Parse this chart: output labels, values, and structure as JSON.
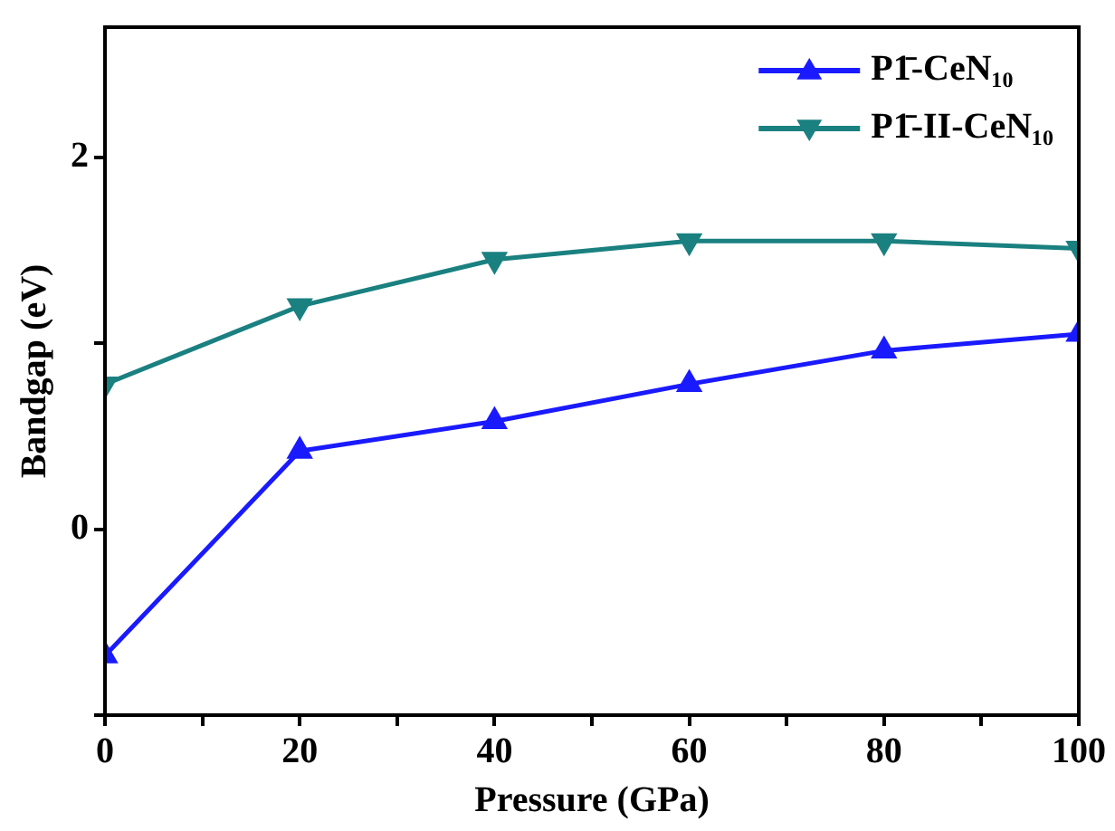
{
  "chart_data": {
    "type": "line",
    "xlabel": "Pressure (GPa)",
    "ylabel": "Bandgap (eV)",
    "x": [
      0,
      20,
      40,
      60,
      80,
      100
    ],
    "series": [
      {
        "name": "P1̄-CeN₁₀",
        "color": "#1a1aff",
        "values": [
          -0.68,
          0.42,
          0.58,
          0.78,
          0.96,
          1.05
        ]
      },
      {
        "name": "P1̄-II-CeN₁₀",
        "color": "#1a8080",
        "values": [
          0.78,
          1.2,
          1.45,
          1.55,
          1.55,
          1.51
        ]
      }
    ],
    "xlim": [
      0,
      100
    ],
    "xticks": [
      0,
      {
        "value": 10,
        "label": null
      },
      20,
      {
        "value": 30,
        "label": null
      },
      40,
      {
        "value": 50,
        "label": null
      },
      60,
      {
        "value": 70,
        "label": null
      },
      80,
      {
        "value": 90,
        "label": null
      },
      100
    ],
    "ylim": [
      -1,
      2.7
    ],
    "yticks": [
      {
        "value": -1,
        "label": null
      },
      0,
      {
        "value": 1,
        "label": null
      },
      2
    ],
    "grid": false,
    "legend": "top right",
    "marker": "triangle",
    "line_style": "solid"
  }
}
